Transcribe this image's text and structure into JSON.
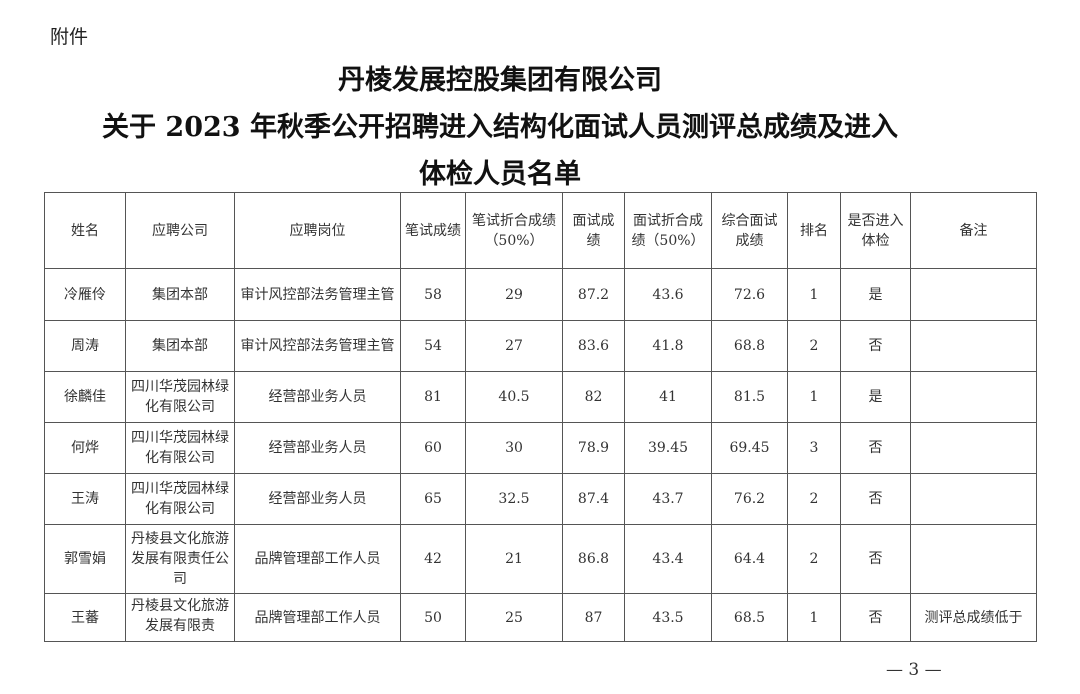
{
  "attachment_label": "附件",
  "title_lines": [
    "丹棱发展控股集团有限公司",
    "关于 2023 年秋季公开招聘进入结构化面试人员测评总成绩及进入",
    "体检人员名单"
  ],
  "table": {
    "headers": [
      "姓名",
      "应聘公司",
      "应聘岗位",
      "笔试成绩",
      "笔试折合成绩（50%）",
      "面试成绩",
      "面试折合成绩（50%）",
      "综合面试成绩",
      "排名",
      "是否进入体检",
      "备注"
    ],
    "rows": [
      [
        "冷雁伶",
        "集团本部",
        "审计风控部法务管理主管",
        "58",
        "29",
        "87.2",
        "43.6",
        "72.6",
        "1",
        "是",
        ""
      ],
      [
        "周涛",
        "集团本部",
        "审计风控部法务管理主管",
        "54",
        "27",
        "83.6",
        "41.8",
        "68.8",
        "2",
        "否",
        ""
      ],
      [
        "徐麟佳",
        "四川华茂园林绿化有限公司",
        "经营部业务人员",
        "81",
        "40.5",
        "82",
        "41",
        "81.5",
        "1",
        "是",
        ""
      ],
      [
        "何烨",
        "四川华茂园林绿化有限公司",
        "经营部业务人员",
        "60",
        "30",
        "78.9",
        "39.45",
        "69.45",
        "3",
        "否",
        ""
      ],
      [
        "王涛",
        "四川华茂园林绿化有限公司",
        "经营部业务人员",
        "65",
        "32.5",
        "87.4",
        "43.7",
        "76.2",
        "2",
        "否",
        ""
      ],
      [
        "郭雪娟",
        "丹棱县文化旅游发展有限责任公司",
        "品牌管理部工作人员",
        "42",
        "21",
        "86.8",
        "43.4",
        "64.4",
        "2",
        "否",
        ""
      ],
      [
        "王蕃",
        "丹棱县文化旅游发展有限责",
        "品牌管理部工作人员",
        "50",
        "25",
        "87",
        "43.5",
        "68.5",
        "1",
        "否",
        "测评总成绩低于"
      ]
    ]
  },
  "page_number": "— 3 —"
}
